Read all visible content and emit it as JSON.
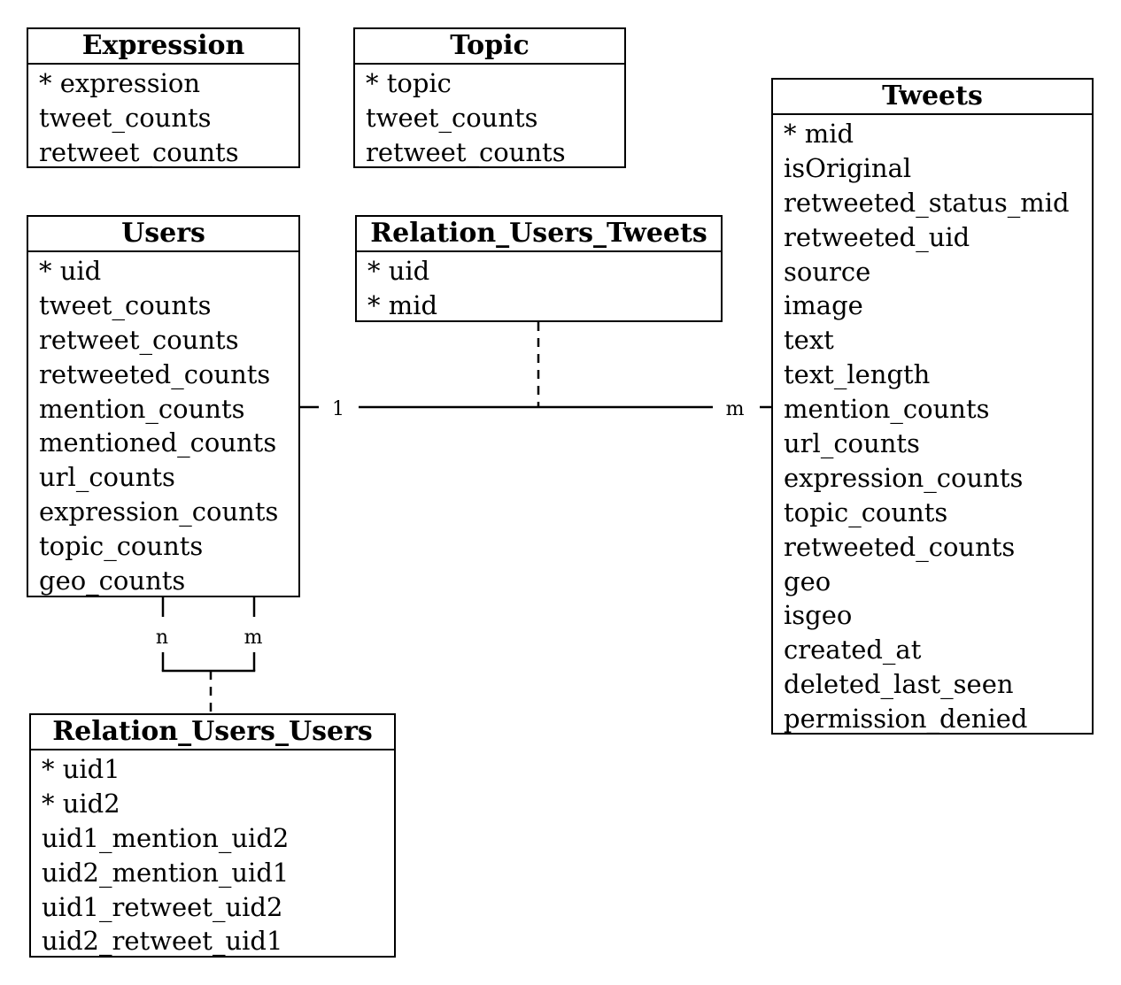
{
  "entities": {
    "expression": {
      "title": "Expression",
      "fields": [
        "* expression",
        "tweet_counts",
        "retweet_counts"
      ]
    },
    "topic": {
      "title": "Topic",
      "fields": [
        "* topic",
        "tweet_counts",
        "retweet_counts"
      ]
    },
    "users": {
      "title": "Users",
      "fields": [
        "* uid",
        "tweet_counts",
        "retweet_counts",
        "retweeted_counts",
        "mention_counts",
        "mentioned_counts",
        "url_counts",
        "expression_counts",
        "topic_counts",
        "geo_counts"
      ]
    },
    "relation_users_tweets": {
      "title": "Relation_Users_Tweets",
      "fields": [
        "* uid",
        "* mid"
      ]
    },
    "tweets": {
      "title": "Tweets",
      "fields": [
        "* mid",
        "isOriginal",
        "retweeted_status_mid",
        "retweeted_uid",
        "source",
        "image",
        "text",
        "text_length",
        "mention_counts",
        "url_counts",
        "expression_counts",
        "topic_counts",
        "retweeted_counts",
        "geo",
        "isgeo",
        "created_at",
        "deleted_last_seen",
        "permission_denied"
      ]
    },
    "relation_users_users": {
      "title": "Relation_Users_Users",
      "fields": [
        "* uid1",
        "* uid2",
        "uid1_mention_uid2",
        "uid2_mention_uid1",
        "uid1_retweet_uid2",
        "uid2_retweet_uid1"
      ]
    }
  },
  "relationships": {
    "users_tweets": {
      "users_cardinality": "1",
      "tweets_cardinality": "m"
    },
    "users_users": {
      "left_cardinality": "n",
      "right_cardinality": "m"
    }
  }
}
